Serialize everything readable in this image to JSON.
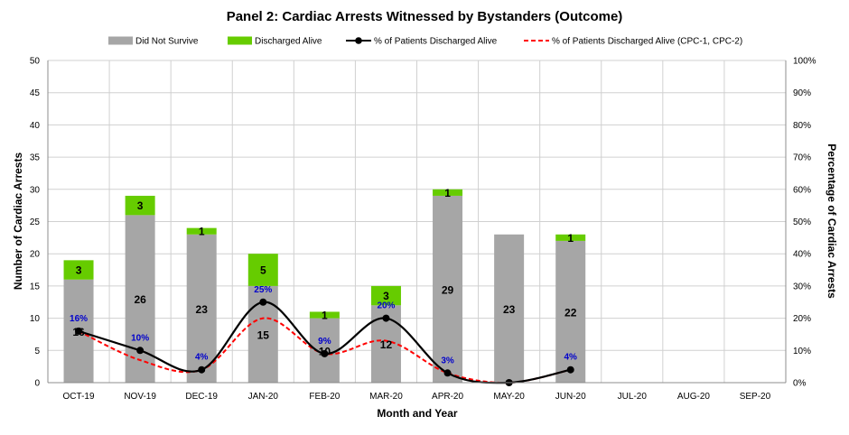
{
  "chart_data": {
    "type": "bar",
    "title": "Panel 2: Cardiac Arrests Witnessed by Bystanders (Outcome)",
    "xlabel": "Month and Year",
    "ylabel": "Number of Cardiac Arrests",
    "y2label": "Percentage of Cardiac Arrests",
    "ylim": [
      0,
      50
    ],
    "y2lim": [
      0,
      100
    ],
    "y_ticks": [
      "0",
      "5",
      "10",
      "15",
      "20",
      "25",
      "30",
      "35",
      "40",
      "45",
      "50"
    ],
    "y2_ticks": [
      "0%",
      "10%",
      "20%",
      "30%",
      "40%",
      "50%",
      "60%",
      "70%",
      "80%",
      "90%",
      "100%"
    ],
    "grid": true,
    "legend_position": "top",
    "categories": [
      "OCT-19",
      "NOV-19",
      "DEC-19",
      "JAN-20",
      "FEB-20",
      "MAR-20",
      "APR-20",
      "MAY-20",
      "JUN-20",
      "JUL-20",
      "AUG-20",
      "SEP-20"
    ],
    "series": [
      {
        "name": "Did Not Survive",
        "kind": "bar",
        "color": "#a6a6a6",
        "values": [
          16,
          26,
          23,
          15,
          10,
          12,
          29,
          23,
          22,
          null,
          null,
          null
        ],
        "labels": [
          "16",
          "26",
          "23",
          "15",
          "10",
          "12",
          "29",
          "23",
          "22",
          "",
          "",
          ""
        ]
      },
      {
        "name": "Discharged Alive",
        "kind": "bar",
        "color": "#66cc00",
        "values": [
          3,
          3,
          1,
          5,
          1,
          3,
          1,
          0,
          1,
          null,
          null,
          null
        ],
        "labels": [
          "3",
          "3",
          "1",
          "5",
          "1",
          "3",
          "1",
          "",
          "1",
          "",
          "",
          ""
        ]
      },
      {
        "name": "% of Patients Discharged Alive",
        "kind": "line",
        "axis": "right",
        "color": "#000000",
        "values": [
          16,
          10,
          4,
          25,
          9,
          20,
          3,
          0,
          4,
          null,
          null,
          null
        ],
        "labels": [
          "16%",
          "10%",
          "4%",
          "25%",
          "9%",
          "20%",
          "3%",
          "",
          "4%",
          "",
          "",
          ""
        ],
        "label_color": "#0000cc"
      },
      {
        "name": "% of Patients Discharged Alive (CPC-1, CPC-2)",
        "kind": "line",
        "axis": "right",
        "dashed": true,
        "color": "#ff0000",
        "values": [
          16,
          7,
          4,
          20,
          9,
          13,
          3,
          0,
          4,
          null,
          null,
          null
        ]
      }
    ]
  }
}
